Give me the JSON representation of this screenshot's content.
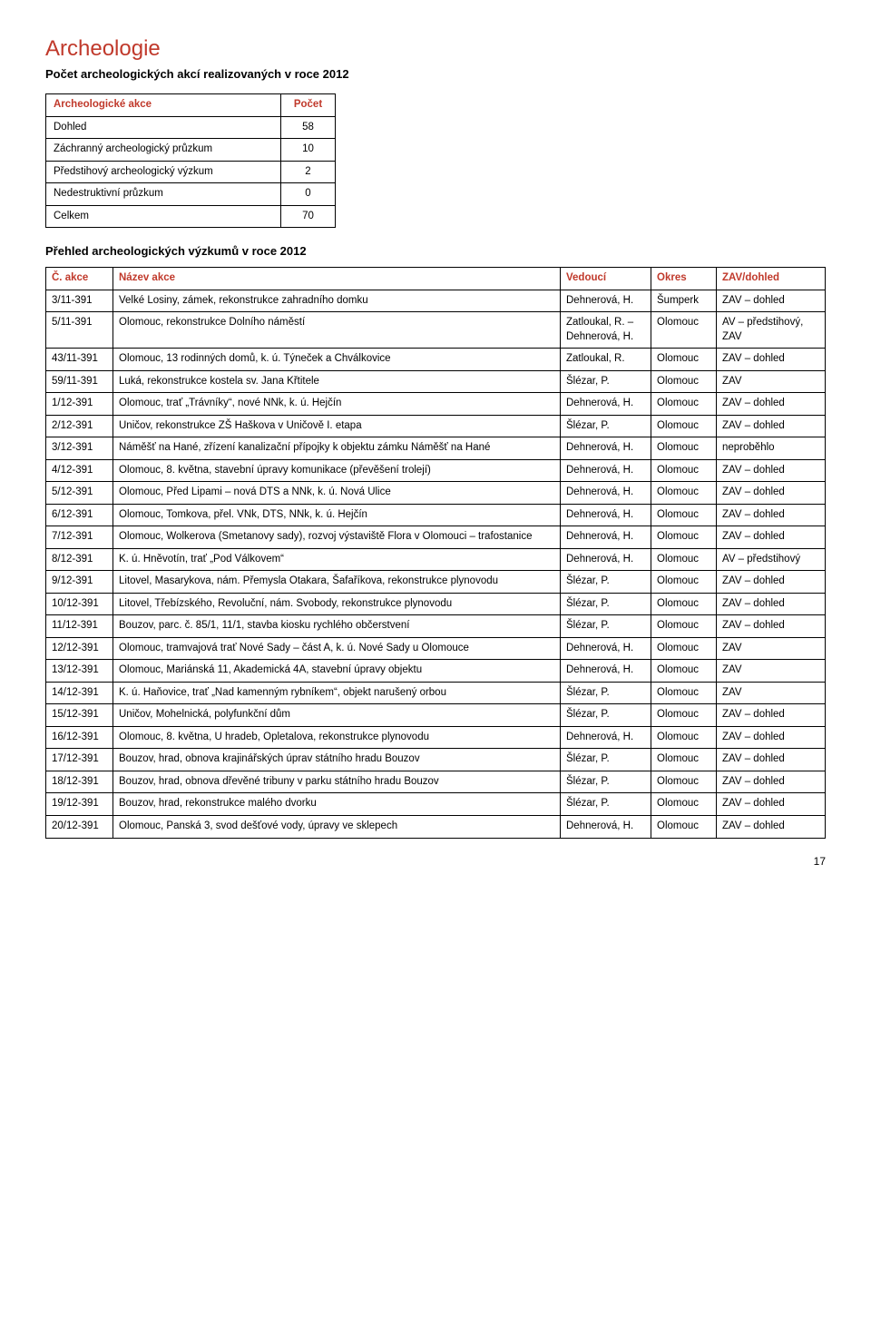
{
  "section_title": "Archeologie",
  "counts_heading": "Počet archeologických akcí realizovaných v roce 2012",
  "counts_table": {
    "header_action": "Archeologické akce",
    "header_count": "Počet",
    "rows": [
      {
        "label": "Dohled",
        "count": "58"
      },
      {
        "label": "Záchranný archeologický průzkum",
        "count": "10"
      },
      {
        "label": "Předstihový archeologický výzkum",
        "count": "2"
      },
      {
        "label": "Nedestruktivní průzkum",
        "count": "0"
      },
      {
        "label": "Celkem",
        "count": "70"
      }
    ]
  },
  "research_heading": "Přehled archeologických výzkumů v roce 2012",
  "research_table": {
    "headers": {
      "id": "Č. akce",
      "name": "Název akce",
      "lead": "Vedoucí",
      "district": "Okres",
      "zav": "ZAV/dohled"
    },
    "rows": [
      {
        "id": "3/11-391",
        "name": "Velké Losiny, zámek, rekonstrukce zahradního domku",
        "lead": "Dehnerová, H.",
        "district": "Šumperk",
        "zav": "ZAV – dohled"
      },
      {
        "id": "5/11-391",
        "name": "Olomouc, rekonstrukce Dolního náměstí",
        "lead": "Zatloukal, R. – Dehnerová, H.",
        "district": "Olomouc",
        "zav": "AV – předstihový, ZAV"
      },
      {
        "id": "43/11-391",
        "name": "Olomouc, 13 rodinných domů, k. ú. Týneček a Chválkovice",
        "lead": "Zatloukal, R.",
        "district": "Olomouc",
        "zav": "ZAV – dohled"
      },
      {
        "id": "59/11-391",
        "name": "Luká, rekonstrukce kostela sv. Jana Křtitele",
        "lead": "Šlézar, P.",
        "district": "Olomouc",
        "zav": "ZAV"
      },
      {
        "id": "1/12-391",
        "name": "Olomouc, trať „Trávníky“, nové NNk, k. ú. Hejčín",
        "lead": "Dehnerová, H.",
        "district": "Olomouc",
        "zav": "ZAV – dohled"
      },
      {
        "id": "2/12-391",
        "name": "Uničov, rekonstrukce ZŠ Haškova v Uničově I. etapa",
        "lead": "Šlézar, P.",
        "district": "Olomouc",
        "zav": "ZAV – dohled"
      },
      {
        "id": "3/12-391",
        "name": "Náměšť na Hané, zřízení kanalizační přípojky k objektu zámku Náměšť na Hané",
        "lead": "Dehnerová, H.",
        "district": "Olomouc",
        "zav": "neproběhlo"
      },
      {
        "id": "4/12-391",
        "name": "Olomouc, 8. května, stavební úpravy komunikace (převěšení trolejí)",
        "lead": "Dehnerová, H.",
        "district": "Olomouc",
        "zav": "ZAV – dohled"
      },
      {
        "id": "5/12-391",
        "name": "Olomouc, Před Lipami – nová DTS a NNk, k. ú. Nová Ulice",
        "lead": "Dehnerová, H.",
        "district": "Olomouc",
        "zav": "ZAV – dohled"
      },
      {
        "id": "6/12-391",
        "name": "Olomouc, Tomkova, přel. VNk, DTS, NNk, k. ú. Hejčín",
        "lead": "Dehnerová, H.",
        "district": "Olomouc",
        "zav": "ZAV – dohled"
      },
      {
        "id": "7/12-391",
        "name": "Olomouc, Wolkerova (Smetanovy sady), rozvoj výstaviště Flora v Olomouci – trafostanice",
        "lead": "Dehnerová, H.",
        "district": "Olomouc",
        "zav": "ZAV – dohled"
      },
      {
        "id": "8/12-391",
        "name": "K. ú. Hněvotín, trať „Pod Válkovem“",
        "lead": "Dehnerová, H.",
        "district": "Olomouc",
        "zav": "AV – předstihový"
      },
      {
        "id": "9/12-391",
        "name": "Litovel, Masarykova, nám. Přemysla Otakara, Šafaříkova, rekonstrukce plynovodu",
        "lead": "Šlézar, P.",
        "district": "Olomouc",
        "zav": "ZAV – dohled"
      },
      {
        "id": "10/12-391",
        "name": "Litovel, Třebízského, Revoluční, nám. Svobody, rekonstrukce plynovodu",
        "lead": "Šlézar, P.",
        "district": "Olomouc",
        "zav": "ZAV – dohled"
      },
      {
        "id": "11/12-391",
        "name": "Bouzov, parc. č. 85/1, 11/1, stavba kiosku rychlého občerstvení",
        "lead": "Šlézar, P.",
        "district": "Olomouc",
        "zav": "ZAV – dohled"
      },
      {
        "id": "12/12-391",
        "name": "Olomouc, tramvajová trať Nové Sady – část A, k. ú. Nové Sady u Olomouce",
        "lead": "Dehnerová, H.",
        "district": "Olomouc",
        "zav": "ZAV"
      },
      {
        "id": "13/12-391",
        "name": "Olomouc, Mariánská 11, Akademická 4A, stavební úpravy objektu",
        "lead": "Dehnerová, H.",
        "district": "Olomouc",
        "zav": "ZAV"
      },
      {
        "id": "14/12-391",
        "name": "K. ú. Haňovice, trať „Nad kamenným rybníkem“, objekt narušený orbou",
        "lead": "Šlézar, P.",
        "district": "Olomouc",
        "zav": "ZAV"
      },
      {
        "id": "15/12-391",
        "name": "Uničov, Mohelnická, polyfunkční dům",
        "lead": "Šlézar, P.",
        "district": "Olomouc",
        "zav": "ZAV – dohled"
      },
      {
        "id": "16/12-391",
        "name": "Olomouc, 8. května, U hradeb, Opletalova, rekonstrukce plynovodu",
        "lead": "Dehnerová, H.",
        "district": "Olomouc",
        "zav": "ZAV – dohled"
      },
      {
        "id": "17/12-391",
        "name": "Bouzov, hrad, obnova krajinářských úprav státního hradu Bouzov",
        "lead": "Šlézar, P.",
        "district": "Olomouc",
        "zav": "ZAV – dohled"
      },
      {
        "id": "18/12-391",
        "name": "Bouzov, hrad, obnova dřevěné tribuny v parku státního hradu Bouzov",
        "lead": "Šlézar, P.",
        "district": "Olomouc",
        "zav": "ZAV – dohled"
      },
      {
        "id": "19/12-391",
        "name": "Bouzov, hrad, rekonstrukce malého dvorku",
        "lead": "Šlézar, P.",
        "district": "Olomouc",
        "zav": "ZAV – dohled"
      },
      {
        "id": "20/12-391",
        "name": "Olomouc, Panská 3, svod dešťové vody, úpravy ve sklepech",
        "lead": "Dehnerová, H.",
        "district": "Olomouc",
        "zav": "ZAV – dohled"
      }
    ]
  },
  "page_number": "17",
  "colors": {
    "accent": "#c0392b",
    "text": "#000000",
    "border": "#000000",
    "background": "#ffffff"
  }
}
